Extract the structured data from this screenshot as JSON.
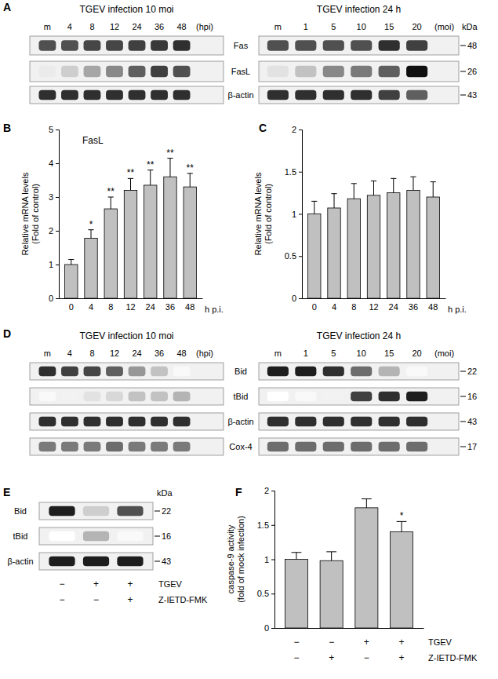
{
  "panel_labels": [
    "A",
    "B",
    "C",
    "D",
    "E",
    "F"
  ],
  "blot_panels": [
    {
      "bands": [
        "Fas",
        "FasL",
        "β-actin"
      ],
      "mw": [
        48,
        26,
        43
      ],
      "kda": "kDa",
      "blots": [
        {
          "header": "TGEV infection 10 moi",
          "lanes": [
            "m",
            "4",
            "8",
            "12",
            "24",
            "36",
            "48"
          ],
          "lane_unit": "(hpi)",
          "levels": [
            [
              0.75,
              0.75,
              0.78,
              0.78,
              0.8,
              0.82,
              0.85
            ],
            [
              0.15,
              0.3,
              0.45,
              0.55,
              0.7,
              0.8,
              0.75
            ],
            [
              0.85,
              0.85,
              0.85,
              0.85,
              0.85,
              0.85,
              0.85
            ]
          ]
        },
        {
          "header": "TGEV infection 24 h",
          "lanes": [
            "m",
            "1",
            "5",
            "10",
            "15",
            "20"
          ],
          "lane_unit": "(moi)",
          "levels": [
            [
              0.75,
              0.75,
              0.75,
              0.75,
              0.85,
              0.8
            ],
            [
              0.2,
              0.35,
              0.55,
              0.6,
              0.7,
              0.95
            ],
            [
              0.85,
              0.85,
              0.85,
              0.85,
              0.8,
              0.7
            ]
          ]
        }
      ]
    },
    {
      "bands": [
        "Bid",
        "tBid",
        "β-actin",
        "Cox-4"
      ],
      "mw": [
        22,
        16,
        43,
        17
      ],
      "blots": [
        {
          "header": "TGEV infection 10 moi",
          "lanes": [
            "m",
            "4",
            "8",
            "12",
            "24",
            "36",
            "48"
          ],
          "lane_unit": "(hpi)",
          "levels": [
            [
              0.85,
              0.8,
              0.78,
              0.7,
              0.5,
              0.35,
              0.05
            ],
            [
              0.05,
              0.1,
              0.2,
              0.25,
              0.35,
              0.35,
              0.4
            ],
            [
              0.85,
              0.85,
              0.85,
              0.85,
              0.85,
              0.85,
              0.85
            ],
            [
              0.6,
              0.6,
              0.6,
              0.65,
              0.6,
              0.6,
              0.6
            ]
          ]
        },
        {
          "header": "TGEV infection 24 h",
          "lanes": [
            "m",
            "1",
            "5",
            "10",
            "15",
            "20"
          ],
          "lane_unit": "(moi)",
          "levels": [
            [
              0.9,
              0.9,
              0.85,
              0.65,
              0.4,
              0.05
            ],
            [
              0.0,
              0.05,
              0.1,
              0.8,
              0.85,
              0.9
            ],
            [
              0.85,
              0.85,
              0.85,
              0.85,
              0.85,
              0.85
            ],
            [
              0.65,
              0.65,
              0.65,
              0.65,
              0.65,
              0.65
            ]
          ]
        }
      ]
    },
    {
      "bands": [
        "Bid",
        "tBid",
        "β-actin"
      ],
      "mw": [
        22,
        16,
        43
      ],
      "kda": "kDa",
      "blots": [
        {
          "levels": [
            [
              0.9,
              0.3,
              0.75
            ],
            [
              0.0,
              0.4,
              0.05
            ],
            [
              0.9,
              0.9,
              0.9
            ]
          ]
        }
      ],
      "conditions": [
        {
          "name": "TGEV",
          "values": [
            "−",
            "+",
            "+"
          ]
        },
        {
          "name": "Z-IETD-FMK",
          "values": [
            "−",
            "−",
            "+"
          ]
        }
      ]
    }
  ],
  "chart_data": [
    {
      "type": "bar",
      "title": "FasL",
      "y_label": [
        "Relative mRNA levels",
        "(Fold of control)"
      ],
      "x_label": "h p.i.",
      "categories": [
        "0",
        "4",
        "8",
        "12",
        "24",
        "36",
        "48"
      ],
      "values": [
        1.0,
        1.78,
        2.65,
        3.2,
        3.35,
        3.6,
        3.3
      ],
      "errors": [
        0.15,
        0.25,
        0.35,
        0.35,
        0.45,
        0.55,
        0.4
      ],
      "annotations": [
        null,
        "*",
        "**",
        "**",
        "**",
        "**",
        "**"
      ],
      "color": "#c0c0c0",
      "ylim": [
        0,
        5
      ],
      "yticks": [
        0,
        1,
        2,
        3,
        4,
        5
      ]
    },
    {
      "type": "bar",
      "y_label": [
        "Relative mRNA levels",
        "(Fold of control)"
      ],
      "x_label": "h p.i.",
      "categories": [
        "0",
        "4",
        "8",
        "12",
        "24",
        "36",
        "48"
      ],
      "values": [
        1.0,
        1.07,
        1.18,
        1.22,
        1.25,
        1.28,
        1.2
      ],
      "errors": [
        0.15,
        0.17,
        0.18,
        0.17,
        0.17,
        0.16,
        0.18
      ],
      "color": "#c0c0c0",
      "ylim": [
        0,
        2
      ],
      "yticks": [
        0,
        0.5,
        1,
        1.5,
        2
      ]
    },
    {
      "type": "bar",
      "y_label": [
        "caspase-9 activity",
        "(fold of mock infection)"
      ],
      "categories": [
        null,
        null,
        null,
        null
      ],
      "values": [
        1.0,
        0.98,
        1.75,
        1.4
      ],
      "errors": [
        0.1,
        0.13,
        0.13,
        0.15
      ],
      "annotations": [
        null,
        null,
        null,
        "*"
      ],
      "conditions": [
        {
          "name": "TGEV",
          "values": [
            "−",
            "−",
            "+",
            "+"
          ]
        },
        {
          "name": "Z-IETD-FMK",
          "values": [
            "−",
            "+",
            "−",
            "+"
          ]
        }
      ],
      "color": "#c0c0c0",
      "ylim": [
        0,
        2
      ],
      "yticks": [
        0,
        0.5,
        1,
        1.5,
        2
      ]
    }
  ]
}
